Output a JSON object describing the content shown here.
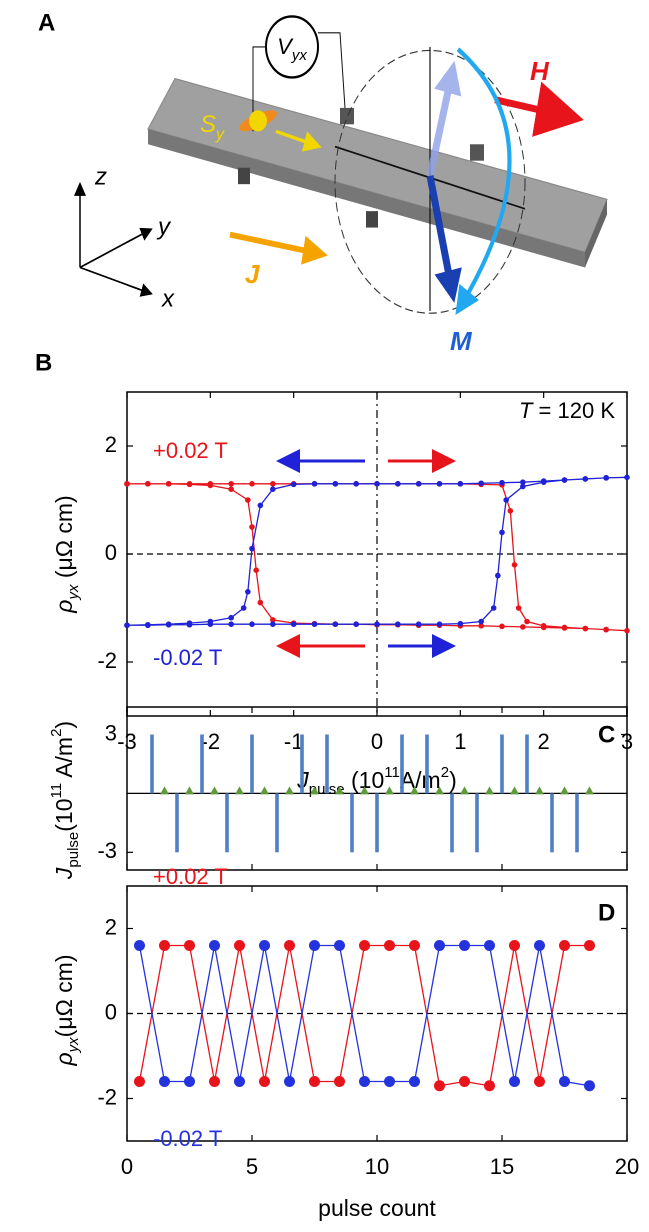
{
  "panel_a": {
    "label": "A",
    "voltmeter": {
      "symbol": "V",
      "subscript": "yx"
    },
    "spin": {
      "symbol": "S",
      "subscript": "y"
    },
    "field": "H",
    "current": "J",
    "magnetization": "M",
    "axes": {
      "x": "x",
      "y": "y",
      "z": "z"
    }
  },
  "chart_data": [
    {
      "type": "line",
      "panel": "B",
      "xlabel": [
        {
          "text": "J",
          "style": "italic"
        },
        {
          "text": "pulse",
          "style": "sub"
        },
        {
          "text": " (10",
          "style": "normal"
        },
        {
          "text": "11",
          "style": "sup"
        },
        {
          "text": "A/m",
          "style": "normal"
        },
        {
          "text": "2",
          "style": "sup"
        },
        {
          "text": ")",
          "style": "normal"
        }
      ],
      "ylabel": [
        {
          "text": "ρ",
          "style": "italic"
        },
        {
          "text": "yx",
          "style": "sub-italic"
        },
        {
          "text": " (μΩ cm)",
          "style": "normal"
        }
      ],
      "annotation": [
        {
          "text": "T",
          "style": "italic"
        },
        {
          "text": " = 120 K",
          "style": "normal"
        }
      ],
      "xlim": [
        -3,
        3
      ],
      "ylim": [
        -3,
        3
      ],
      "xticks": [
        -3,
        -2,
        -1,
        0,
        1,
        2,
        3
      ],
      "yticks": [
        -2,
        0,
        2
      ],
      "zero_lines": [
        "x",
        "y"
      ],
      "marker_size": 2.8,
      "series": [
        {
          "name": "+0.02 T",
          "color": "#e8141c",
          "x": [
            -3,
            -2.75,
            -2.5,
            -2.25,
            -2,
            -1.75,
            -1.5,
            -1.25,
            -1,
            -0.75,
            -0.5,
            -0.25,
            0,
            0.25,
            0.5,
            0.75,
            1,
            1.25,
            1.5,
            1.6,
            1.65,
            1.7,
            1.8,
            2,
            2.25,
            2.5,
            2.75,
            3,
            2.75,
            2.5,
            2.25,
            2,
            1.75,
            1.5,
            1.25,
            1,
            0.75,
            0.5,
            0.25,
            0,
            -0.25,
            -0.5,
            -0.75,
            -1,
            -1.25,
            -1.4,
            -1.45,
            -1.5,
            -1.55,
            -1.75,
            -2,
            -2.25,
            -2.5,
            -2.75,
            -3
          ],
          "values": [
            1.3,
            1.3,
            1.3,
            1.3,
            1.3,
            1.3,
            1.3,
            1.3,
            1.3,
            1.3,
            1.3,
            1.3,
            1.3,
            1.3,
            1.3,
            1.3,
            1.3,
            1.29,
            1.28,
            0.8,
            -0.2,
            -1.0,
            -1.25,
            -1.33,
            -1.36,
            -1.38,
            -1.4,
            -1.42,
            -1.4,
            -1.38,
            -1.37,
            -1.36,
            -1.35,
            -1.34,
            -1.33,
            -1.33,
            -1.32,
            -1.32,
            -1.31,
            -1.31,
            -1.3,
            -1.3,
            -1.29,
            -1.28,
            -1.22,
            -0.9,
            -0.3,
            0.5,
            1.0,
            1.2,
            1.27,
            1.29,
            1.3,
            1.3,
            1.3
          ]
        },
        {
          "name": "-0.02 T",
          "color": "#1f22d6",
          "x": [
            -3,
            -2.75,
            -2.5,
            -2.25,
            -2,
            -1.75,
            -1.5,
            -1.25,
            -1,
            -0.75,
            -0.5,
            -0.25,
            0,
            0.25,
            0.5,
            0.75,
            1,
            1.25,
            1.4,
            1.45,
            1.5,
            1.55,
            1.75,
            2,
            2.25,
            2.5,
            2.75,
            3,
            2.75,
            2.5,
            2.25,
            2,
            1.75,
            1.5,
            1.25,
            1,
            0.75,
            0.5,
            0.25,
            0,
            -0.25,
            -0.5,
            -0.75,
            -1,
            -1.25,
            -1.4,
            -1.5,
            -1.55,
            -1.6,
            -1.75,
            -2,
            -2.25,
            -2.5,
            -2.75,
            -3
          ],
          "values": [
            -1.32,
            -1.32,
            -1.31,
            -1.31,
            -1.3,
            -1.3,
            -1.3,
            -1.3,
            -1.3,
            -1.3,
            -1.3,
            -1.3,
            -1.3,
            -1.3,
            -1.3,
            -1.3,
            -1.29,
            -1.25,
            -1.0,
            -0.4,
            0.4,
            1.0,
            1.25,
            1.33,
            1.37,
            1.39,
            1.41,
            1.42,
            1.41,
            1.39,
            1.37,
            1.35,
            1.33,
            1.32,
            1.31,
            1.3,
            1.3,
            1.3,
            1.3,
            1.3,
            1.3,
            1.3,
            1.3,
            1.29,
            1.2,
            0.9,
            0.1,
            -0.7,
            -1.0,
            -1.18,
            -1.25,
            -1.28,
            -1.3,
            -1.31,
            -1.32
          ]
        }
      ]
    },
    {
      "type": "bar",
      "panel": "C",
      "ylabel": [
        {
          "text": "J",
          "style": "italic"
        },
        {
          "text": "pulse",
          "style": "sub"
        },
        {
          "text": "(10",
          "style": "normal"
        },
        {
          "text": "11",
          "style": "sup"
        },
        {
          "text": " A/m",
          "style": "normal"
        },
        {
          "text": "2",
          "style": "sup"
        },
        {
          "text": ")",
          "style": "normal"
        }
      ],
      "xlim": [
        0,
        20
      ],
      "ylim": [
        -3.9,
        4.4
      ],
      "xticks": [
        0,
        5,
        10,
        15,
        20
      ],
      "xtick_labels": false,
      "yticks": [
        -3,
        3
      ],
      "zero_lines": [
        "y"
      ],
      "zero_line_style": "solid",
      "series": [
        {
          "type": "bar",
          "color": "#4f7fc4",
          "x": [
            1,
            2,
            3,
            4,
            5,
            6,
            7,
            8,
            9,
            10,
            11,
            12,
            13,
            14,
            15,
            16,
            17,
            18
          ],
          "values": [
            3,
            -3,
            3,
            -3,
            3,
            -3,
            3,
            3,
            -3,
            -3,
            3,
            3,
            -3,
            -3,
            3,
            3,
            -3,
            -3
          ]
        },
        {
          "type": "scatter",
          "marker": "triangle",
          "color": "#5f9a3a",
          "x": [
            1.5,
            2.5,
            3.5,
            4.5,
            5.5,
            6.5,
            7.5,
            8.5,
            9.5,
            10.5,
            11.5,
            12.5,
            13.5,
            14.5,
            15.5,
            16.5,
            17.5,
            18.5
          ],
          "values": [
            0,
            0,
            0,
            0,
            0,
            0,
            0,
            0,
            0,
            0,
            0,
            0,
            0,
            0,
            0,
            0,
            0,
            0
          ]
        }
      ]
    },
    {
      "type": "line",
      "panel": "D",
      "xlabel": [
        {
          "text": "pulse count",
          "style": "normal"
        }
      ],
      "ylabel": [
        {
          "text": "ρ",
          "style": "italic"
        },
        {
          "text": "yx",
          "style": "sub-italic"
        },
        {
          "text": "(μΩ cm)",
          "style": "normal"
        }
      ],
      "xlim": [
        0,
        20
      ],
      "ylim": [
        -3,
        3
      ],
      "xticks": [
        0,
        5,
        10,
        15,
        20
      ],
      "yticks": [
        -2,
        0,
        2
      ],
      "zero_lines": [
        "y"
      ],
      "marker_size": 5.5,
      "series": [
        {
          "name": "+0.02 T",
          "color": "#e8141c",
          "x": [
            0.5,
            1.5,
            2.5,
            3.5,
            4.5,
            5.5,
            6.5,
            7.5,
            8.5,
            9.5,
            10.5,
            11.5,
            12.5,
            13.5,
            14.5,
            15.5,
            16.5,
            17.5,
            18.5
          ],
          "values": [
            -1.6,
            1.6,
            1.6,
            -1.6,
            1.6,
            -1.6,
            1.6,
            -1.6,
            -1.6,
            1.6,
            1.6,
            1.6,
            -1.7,
            -1.6,
            -1.7,
            1.6,
            -1.6,
            1.6,
            1.6
          ]
        },
        {
          "name": "-0.02 T",
          "color": "#2433dc",
          "x": [
            0.5,
            1.5,
            2.5,
            3.5,
            4.5,
            5.5,
            6.5,
            7.5,
            8.5,
            9.5,
            10.5,
            11.5,
            12.5,
            13.5,
            14.5,
            15.5,
            16.5,
            17.5,
            18.5
          ],
          "values": [
            1.6,
            -1.6,
            -1.6,
            1.6,
            -1.6,
            1.6,
            -1.6,
            1.6,
            1.6,
            -1.6,
            -1.6,
            -1.6,
            1.6,
            1.6,
            1.6,
            -1.6,
            1.6,
            -1.6,
            -1.7
          ]
        }
      ]
    }
  ]
}
